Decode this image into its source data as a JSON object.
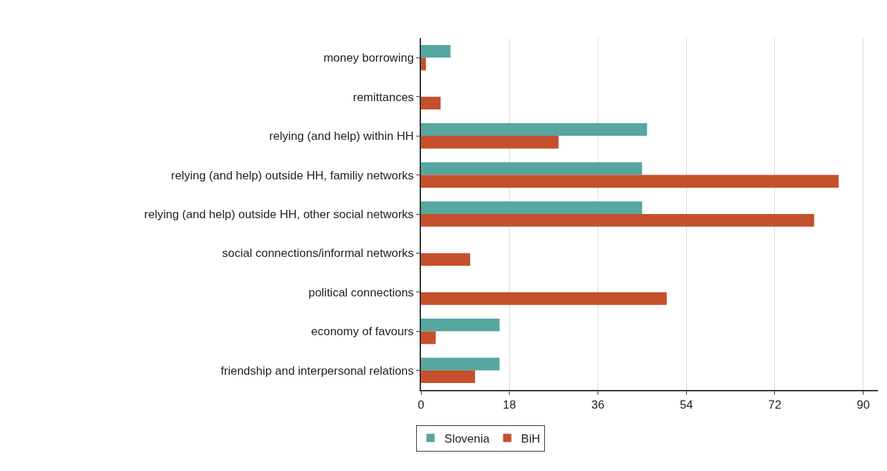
{
  "chart_data": {
    "type": "bar",
    "orientation": "horizontal",
    "categories": [
      "money borrowing",
      "remittances",
      "relying (and help) within HH",
      "relying (and help) outside HH, familiy networks",
      "relying (and help) outside HH, other social networks",
      "social connections/informal networks",
      "political connections",
      "economy of favours",
      "friendship and interpersonal relations"
    ],
    "series": [
      {
        "name": "Slovenia",
        "color": "#58a6a0",
        "values": [
          6,
          null,
          46,
          45,
          45,
          null,
          null,
          16,
          16
        ]
      },
      {
        "name": "BiH",
        "color": "#c5502d",
        "values": [
          1,
          4,
          28,
          85,
          80,
          10,
          50,
          3,
          11
        ]
      }
    ],
    "xlim": [
      0,
      93
    ],
    "xticks": [
      0,
      18,
      36,
      54,
      72,
      90
    ],
    "grid": "x",
    "legend": "bottom"
  }
}
